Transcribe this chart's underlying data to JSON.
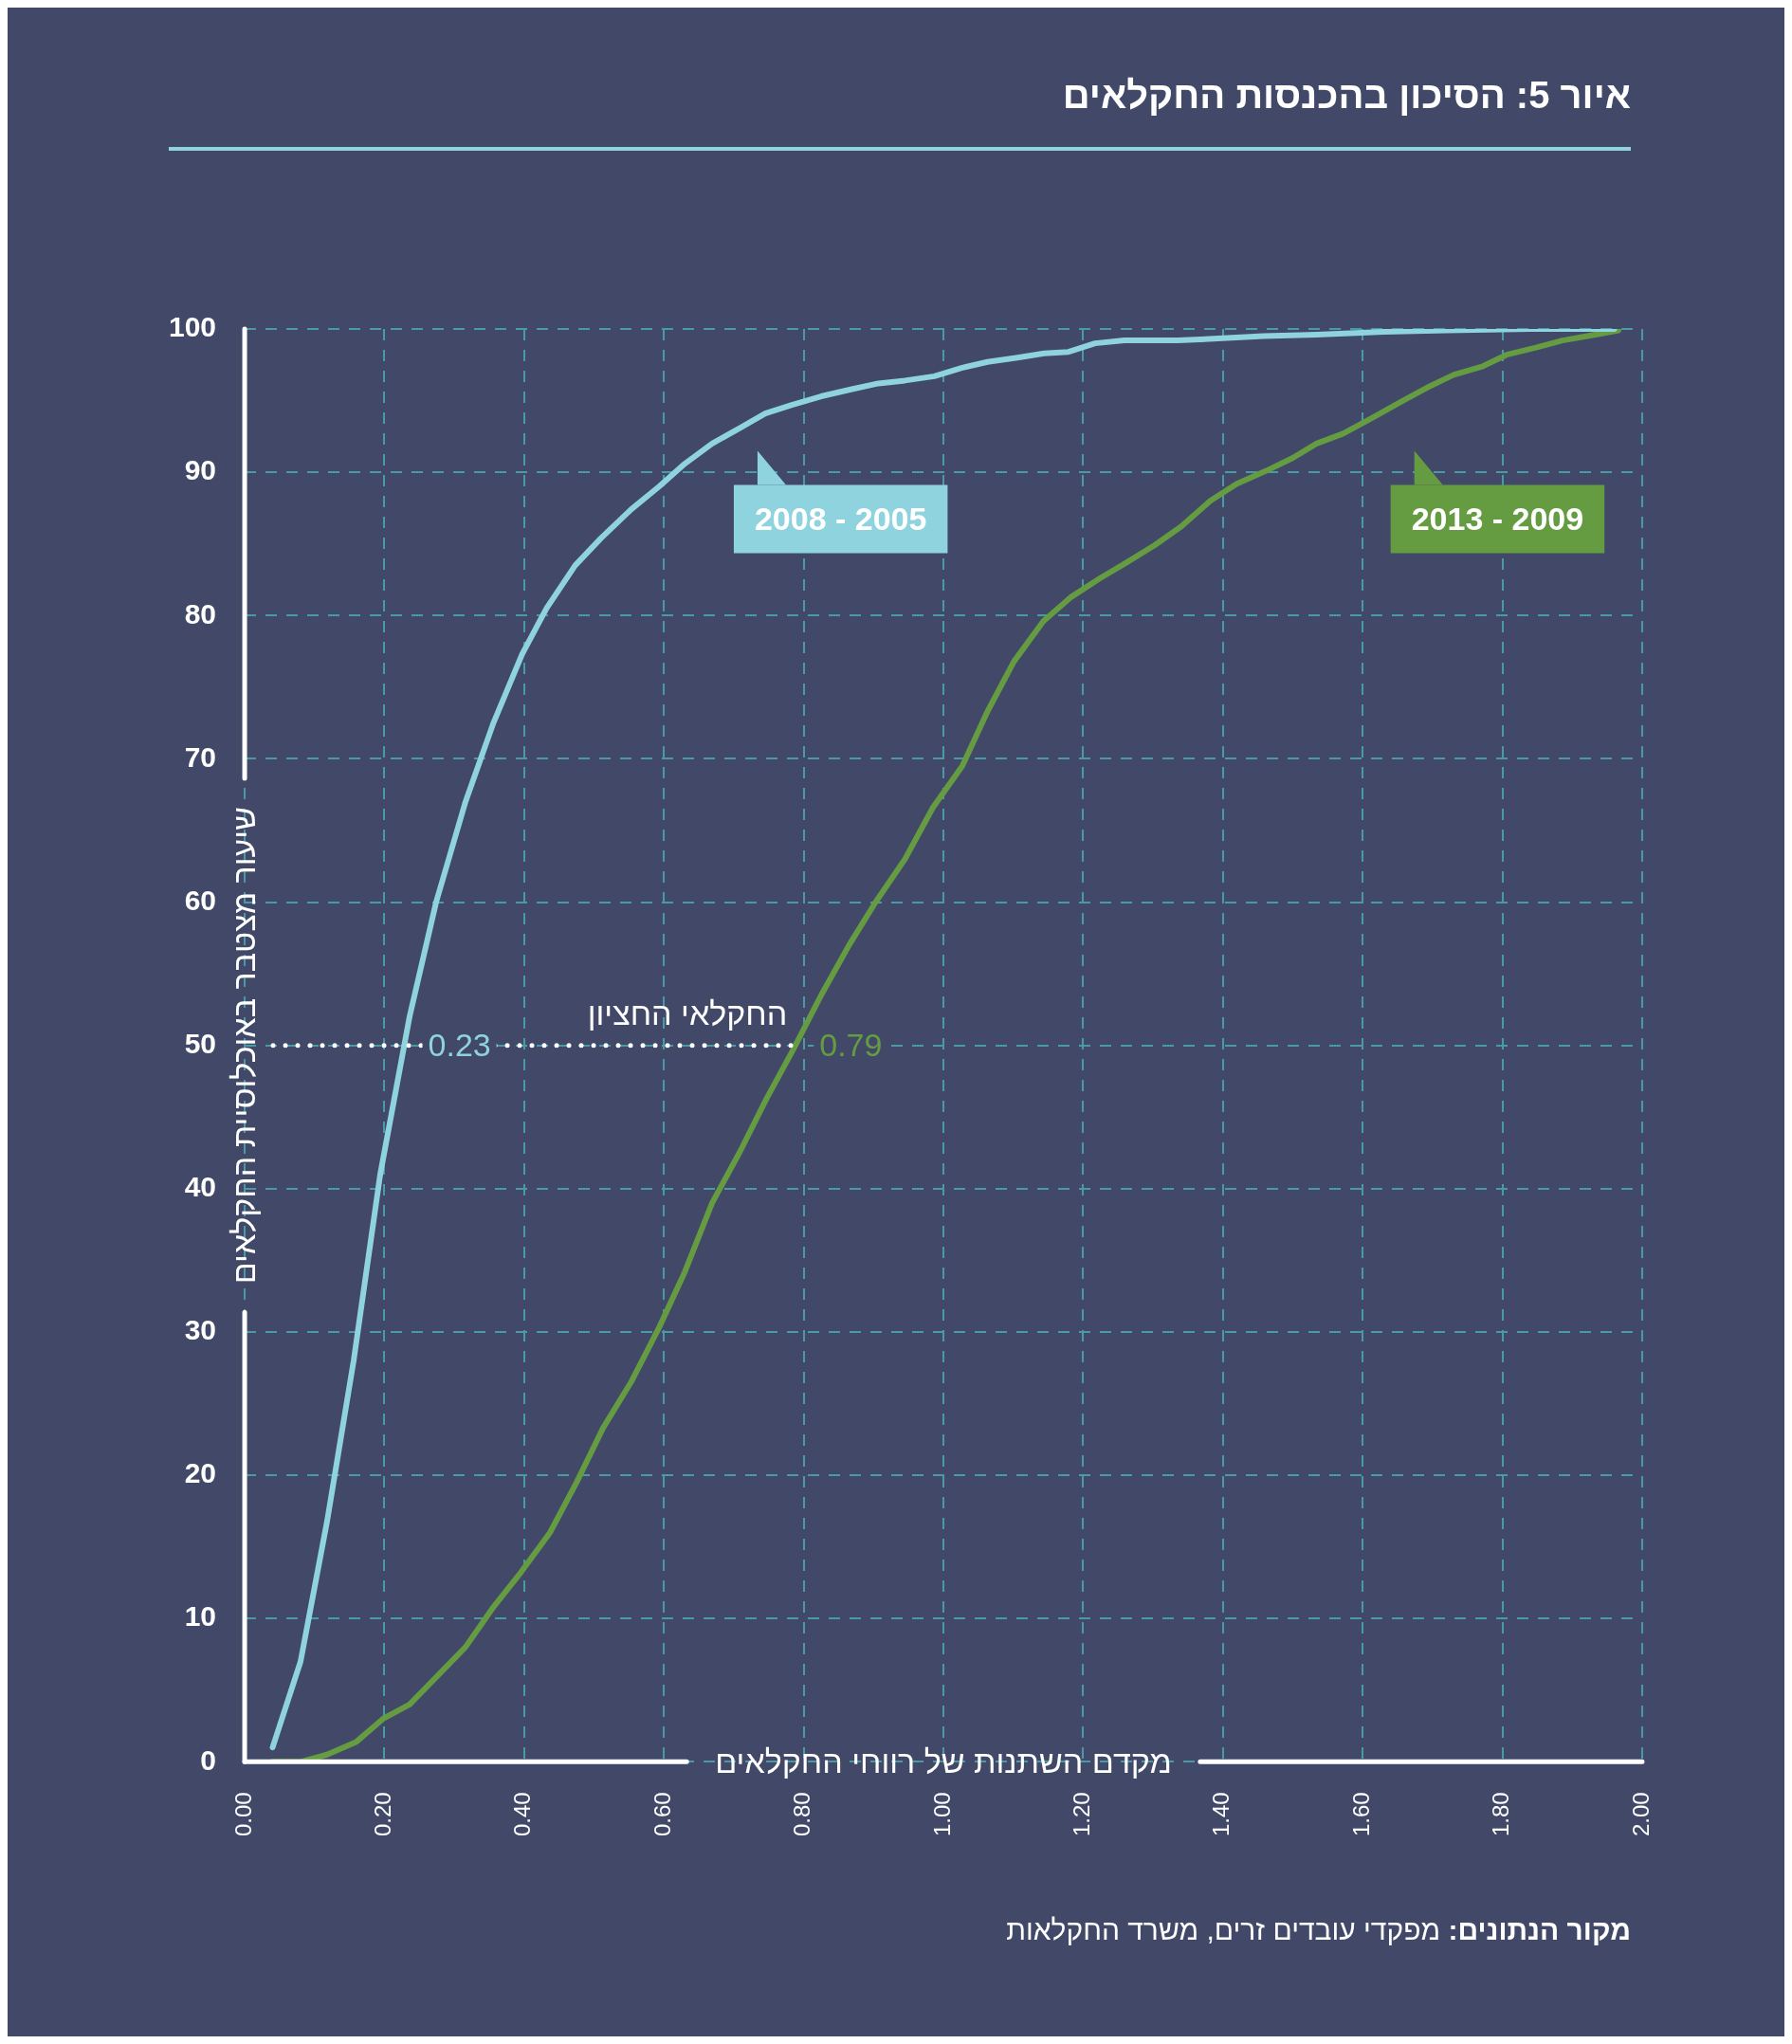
{
  "chart_data": {
    "type": "line",
    "title": "איור 5: הסיכון בהכנסות החקלאים",
    "xlabel": "מקדם השתנות של רווחי החקלאים",
    "ylabel": "שיעור מצטבר באוכלוסיית החקלאים",
    "xlim": [
      0,
      2
    ],
    "xticks": [
      {
        "value": 0,
        "label": "0.00"
      },
      {
        "value": 0.2,
        "label": "0.20"
      },
      {
        "value": 0.4,
        "label": "0.40"
      },
      {
        "value": 0.6,
        "label": "0.60"
      },
      {
        "value": 0.8,
        "label": "0.80"
      },
      {
        "value": 1,
        "label": "1.00"
      },
      {
        "value": 1.2,
        "label": "1.20"
      },
      {
        "value": 1.4,
        "label": "1.40"
      },
      {
        "value": 1.6,
        "label": "1.60"
      },
      {
        "value": 1.8,
        "label": "1.80"
      },
      {
        "value": 2,
        "label": "2.00"
      }
    ],
    "ylim": [
      0,
      100
    ],
    "yticks": [
      0,
      10,
      20,
      30,
      40,
      50,
      60,
      70,
      80,
      90,
      100
    ],
    "grid": true,
    "legend": "top right",
    "marker": "none",
    "line_style": "solid",
    "series": [
      {
        "name": "2008 - 2005",
        "color": "#8ed3de",
        "x": [
          0.04,
          0.08,
          0.118,
          0.156,
          0.194,
          0.236,
          0.274,
          0.316,
          0.356,
          0.397,
          0.432,
          0.473,
          0.51,
          0.553,
          0.593,
          0.63,
          0.669,
          0.709,
          0.745,
          0.783,
          0.825,
          0.869,
          0.907,
          0.945,
          0.987,
          1.027,
          1.063,
          1.106,
          1.144,
          1.179,
          1.217,
          1.259,
          1.335,
          1.38,
          1.458,
          1.534,
          1.63,
          1.72,
          1.84,
          1.96
        ],
        "values": [
          1,
          7,
          16.8,
          28,
          41,
          52,
          60,
          67,
          72.5,
          77.3,
          80.5,
          83.5,
          85.4,
          87.4,
          89,
          90.6,
          92,
          93.1,
          94.1,
          94.7,
          95.3,
          95.8,
          96.2,
          96.4,
          96.7,
          97.3,
          97.7,
          98,
          98.3,
          98.4,
          99,
          99.2,
          99.2,
          99.3,
          99.5,
          99.6,
          99.8,
          99.9,
          100,
          100
        ]
      },
      {
        "name": "2013 - 2009",
        "color": "#669c41",
        "x": [
          0.04,
          0.08,
          0.118,
          0.16,
          0.198,
          0.236,
          0.276,
          0.316,
          0.356,
          0.395,
          0.437,
          0.475,
          0.513,
          0.553,
          0.593,
          0.63,
          0.669,
          0.709,
          0.747,
          0.785,
          0.825,
          0.865,
          0.903,
          0.945,
          0.985,
          1.027,
          1.063,
          1.101,
          1.143,
          1.183,
          1.224,
          1.262,
          1.302,
          1.34,
          1.382,
          1.42,
          1.462,
          1.5,
          1.534,
          1.572,
          1.614,
          1.654,
          1.696,
          1.73,
          1.772,
          1.806,
          1.848,
          1.886,
          1.933,
          1.966
        ],
        "values": [
          0,
          0,
          0.5,
          1.4,
          3,
          4,
          6,
          8,
          10.8,
          13.2,
          16,
          19.5,
          23.3,
          26.5,
          30.3,
          34.2,
          39,
          42.6,
          46.3,
          49.7,
          53.5,
          57,
          60,
          63,
          66.6,
          69.5,
          73.3,
          76.8,
          79.6,
          81.3,
          82.6,
          83.7,
          84.9,
          86.2,
          88,
          89.2,
          90.1,
          91,
          92,
          92.7,
          93.8,
          94.9,
          96,
          96.8,
          97.4,
          98.2,
          98.7,
          99.2,
          99.6,
          99.9
        ]
      }
    ],
    "ref_lines": [
      {
        "axis": "y",
        "value": 50,
        "label": "החקלאי החציון",
        "color": "#ffffff",
        "line_style": "dotted"
      }
    ],
    "annotations": [
      {
        "text": "0.23",
        "x": 0.23,
        "y": 50
      },
      {
        "text": "0.79",
        "x": 0.79,
        "y": 50
      },
      "מקור הנתונים: מפקדי עובדים זרים, משרד החקלאות"
    ]
  }
}
